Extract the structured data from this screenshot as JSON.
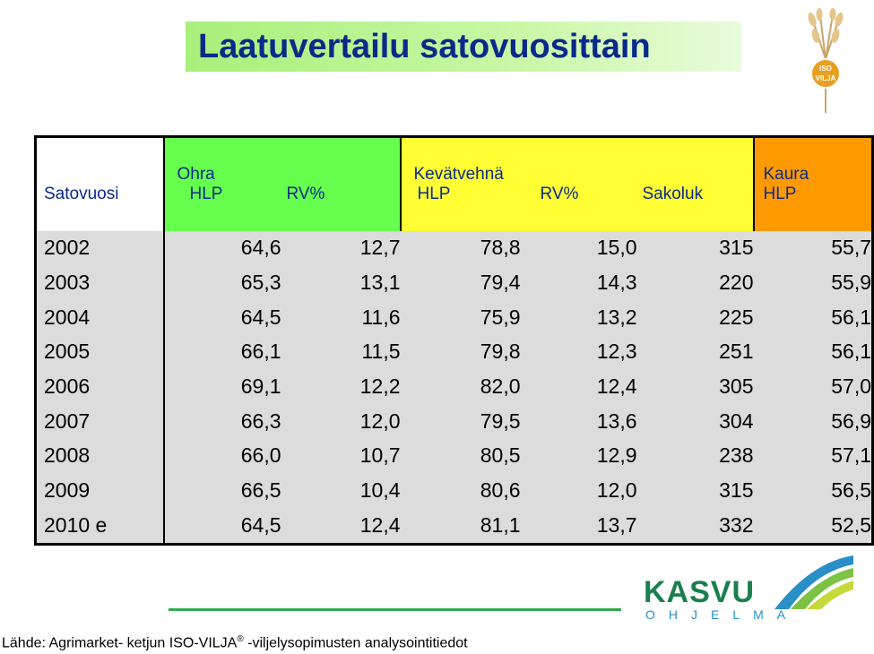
{
  "title": "Laatuvertailu satovuosittain",
  "logo_top_text": "ISO VILJA",
  "table": {
    "year_header": "Satovuosi",
    "groups": {
      "ohra": "Ohra",
      "vehna": "Kevätvehnä",
      "kaura": "Kaura"
    },
    "subheaders": {
      "ohra_hlp": "HLP",
      "ohra_rv": "RV%",
      "vehna_hlp": "HLP",
      "vehna_rv": "RV%",
      "vehna_sakoluk": "Sakoluk",
      "kaura_hlp": "HLP"
    },
    "rows": [
      {
        "year": "2002",
        "ohra_hlp": "64,6",
        "ohra_rv": "12,7",
        "vehna_hlp": "78,8",
        "vehna_rv": "15,0",
        "sakoluk": "315",
        "kaura_hlp": "55,7"
      },
      {
        "year": "2003",
        "ohra_hlp": "65,3",
        "ohra_rv": "13,1",
        "vehna_hlp": "79,4",
        "vehna_rv": "14,3",
        "sakoluk": "220",
        "kaura_hlp": "55,9"
      },
      {
        "year": "2004",
        "ohra_hlp": "64,5",
        "ohra_rv": "11,6",
        "vehna_hlp": "75,9",
        "vehna_rv": "13,2",
        "sakoluk": "225",
        "kaura_hlp": "56,1"
      },
      {
        "year": "2005",
        "ohra_hlp": "66,1",
        "ohra_rv": "11,5",
        "vehna_hlp": "79,8",
        "vehna_rv": "12,3",
        "sakoluk": "251",
        "kaura_hlp": "56,1"
      },
      {
        "year": "2006",
        "ohra_hlp": "69,1",
        "ohra_rv": "12,2",
        "vehna_hlp": "82,0",
        "vehna_rv": "12,4",
        "sakoluk": "305",
        "kaura_hlp": "57,0"
      },
      {
        "year": "2007",
        "ohra_hlp": "66,3",
        "ohra_rv": "12,0",
        "vehna_hlp": "79,5",
        "vehna_rv": "13,6",
        "sakoluk": "304",
        "kaura_hlp": "56,9"
      },
      {
        "year": "2008",
        "ohra_hlp": "66,0",
        "ohra_rv": "10,7",
        "vehna_hlp": "80,5",
        "vehna_rv": "12,9",
        "sakoluk": "238",
        "kaura_hlp": "57,1"
      },
      {
        "year": "2009",
        "ohra_hlp": "66,5",
        "ohra_rv": "10,4",
        "vehna_hlp": "80,6",
        "vehna_rv": "12,0",
        "sakoluk": "315",
        "kaura_hlp": "56,5"
      },
      {
        "year": "2010 e",
        "ohra_hlp": "64,5",
        "ohra_rv": "12,4",
        "vehna_hlp": "81,1",
        "vehna_rv": "13,7",
        "sakoluk": "332",
        "kaura_hlp": "52,5"
      }
    ]
  },
  "footer": {
    "text_before": "Lähde: Agrimarket- ketjun ISO-VILJA",
    "registered": "®",
    "text_after": " -viljelysopimusten analysointitiedot"
  },
  "kasvu_logo": {
    "word": "KASVU",
    "sub": "OHJELMA"
  },
  "colors": {
    "title_text": "#0a2a8a",
    "ohra_header": "#66ff4d",
    "vehna_header": "#ffff33",
    "kaura_header": "#ff9900",
    "data_cell": "#dcdcdc",
    "kasvu_green": "#1a7f4d",
    "kasvu_blue": "#2a8fc6"
  }
}
